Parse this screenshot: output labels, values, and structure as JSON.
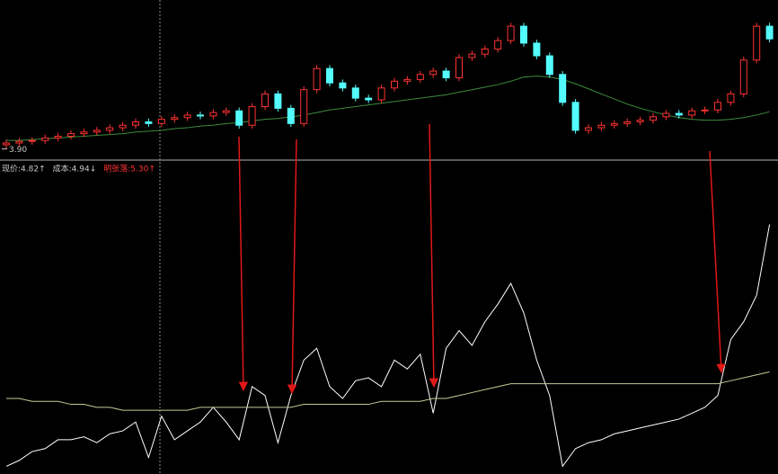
{
  "chart_data": [
    {
      "type": "candlestick",
      "up_color": "#ff3232",
      "down_color": "#54fcfc",
      "ylim": [
        3.8,
        5.5
      ],
      "open": [
        3.95,
        3.97,
        3.99,
        4.0,
        4.03,
        4.05,
        4.08,
        4.1,
        4.12,
        4.15,
        4.18,
        4.22,
        4.2,
        4.25,
        4.27,
        4.3,
        4.29,
        4.33,
        4.35,
        4.18,
        4.4,
        4.55,
        4.38,
        4.2,
        4.6,
        4.85,
        4.68,
        4.62,
        4.5,
        4.48,
        4.62,
        4.7,
        4.72,
        4.78,
        4.82,
        4.74,
        4.98,
        5.02,
        5.08,
        5.18,
        5.35,
        5.15,
        5.0,
        4.78,
        4.45,
        4.12,
        4.15,
        4.18,
        4.2,
        4.22,
        4.24,
        4.28,
        4.32,
        4.3,
        4.35,
        4.36,
        4.45,
        4.55,
        4.95,
        5.35
      ],
      "high": [
        4.01,
        4.03,
        4.04,
        4.07,
        4.09,
        4.12,
        4.14,
        4.16,
        4.19,
        4.22,
        4.26,
        4.26,
        4.29,
        4.31,
        4.34,
        4.34,
        4.37,
        4.39,
        4.39,
        4.44,
        4.59,
        4.59,
        4.42,
        4.64,
        4.89,
        4.89,
        4.72,
        4.66,
        4.54,
        4.66,
        4.74,
        4.76,
        4.82,
        4.86,
        4.86,
        5.02,
        5.06,
        5.12,
        5.22,
        5.39,
        5.39,
        5.19,
        5.04,
        4.82,
        4.49,
        4.19,
        4.22,
        4.24,
        4.26,
        4.28,
        4.32,
        4.36,
        4.36,
        4.39,
        4.4,
        4.49,
        4.59,
        4.99,
        5.39,
        5.39
      ],
      "low": [
        3.9,
        3.93,
        3.95,
        3.96,
        3.99,
        4.01,
        4.04,
        4.06,
        4.08,
        4.11,
        4.14,
        4.16,
        4.16,
        4.21,
        4.23,
        4.25,
        4.25,
        4.29,
        4.14,
        4.14,
        4.36,
        4.34,
        4.16,
        4.16,
        4.56,
        4.64,
        4.58,
        4.46,
        4.44,
        4.44,
        4.58,
        4.66,
        4.68,
        4.74,
        4.7,
        4.7,
        4.94,
        4.98,
        5.04,
        5.14,
        5.11,
        4.96,
        4.74,
        4.41,
        4.08,
        4.08,
        4.11,
        4.14,
        4.16,
        4.18,
        4.2,
        4.24,
        4.26,
        4.26,
        4.31,
        4.32,
        4.41,
        4.51,
        4.91,
        5.16
      ],
      "close": [
        3.97,
        3.99,
        4.0,
        4.03,
        4.05,
        4.08,
        4.1,
        4.12,
        4.15,
        4.18,
        4.22,
        4.2,
        4.25,
        4.27,
        4.3,
        4.29,
        4.33,
        4.35,
        4.18,
        4.4,
        4.55,
        4.38,
        4.2,
        4.6,
        4.85,
        4.68,
        4.62,
        4.5,
        4.48,
        4.62,
        4.7,
        4.72,
        4.78,
        4.82,
        4.74,
        4.98,
        5.02,
        5.08,
        5.18,
        5.35,
        5.15,
        5.0,
        4.78,
        4.45,
        4.12,
        4.15,
        4.18,
        4.2,
        4.22,
        4.24,
        4.28,
        4.32,
        4.3,
        4.35,
        4.36,
        4.45,
        4.55,
        4.95,
        5.35,
        5.2
      ],
      "lines": [
        {
          "color": "#3c8c3c",
          "values": [
            4.0,
            4.0,
            4.01,
            4.02,
            4.03,
            4.04,
            4.05,
            4.06,
            4.07,
            4.08,
            4.1,
            4.11,
            4.12,
            4.14,
            4.15,
            4.17,
            4.18,
            4.2,
            4.21,
            4.23,
            4.25,
            4.26,
            4.28,
            4.3,
            4.33,
            4.36,
            4.38,
            4.4,
            4.42,
            4.44,
            4.46,
            4.48,
            4.5,
            4.52,
            4.54,
            4.57,
            4.6,
            4.63,
            4.66,
            4.7,
            4.75,
            4.76,
            4.75,
            4.72,
            4.67,
            4.61,
            4.55,
            4.49,
            4.43,
            4.38,
            4.34,
            4.3,
            4.27,
            4.25,
            4.24,
            4.24,
            4.25,
            4.27,
            4.3,
            4.34
          ]
        }
      ],
      "low_label": {
        "value": 3.9,
        "label": "3.90"
      },
      "info": [
        {
          "text": "现价:4.82↑",
          "color": "#c8c8c8"
        },
        {
          "text": "成本:4.94↓",
          "color": "#c8c8c8"
        },
        {
          "text": "明张落:5.30↑",
          "color": "#ff3232"
        }
      ]
    },
    {
      "type": "line",
      "ylim": [
        0,
        100
      ],
      "series": [
        {
          "color": "#ffffff",
          "values": [
            2,
            4,
            7,
            8,
            11,
            11,
            12,
            10,
            13,
            14,
            17,
            5,
            19,
            11,
            14,
            17,
            22,
            17,
            11,
            29,
            26,
            10,
            26,
            38,
            42,
            29,
            25,
            31,
            32,
            29,
            38,
            35,
            40,
            20,
            42,
            48,
            43,
            51,
            57,
            64,
            54,
            38,
            26,
            2,
            8,
            10,
            11,
            13,
            14,
            15,
            16,
            17,
            18,
            20,
            22,
            26,
            45,
            51,
            60,
            84
          ]
        },
        {
          "color": "#c8c896",
          "values": [
            25,
            25,
            24,
            24,
            24,
            23,
            23,
            22,
            22,
            21,
            21,
            21,
            21,
            21,
            21,
            22,
            22,
            22,
            22,
            22,
            22,
            22,
            22,
            23,
            23,
            23,
            23,
            23,
            23,
            24,
            24,
            24,
            24,
            25,
            25,
            26,
            27,
            28,
            29,
            30,
            30,
            30,
            30,
            30,
            30,
            30,
            30,
            30,
            30,
            30,
            30,
            30,
            30,
            30,
            30,
            30,
            31,
            32,
            33,
            34
          ]
        }
      ]
    }
  ]
}
